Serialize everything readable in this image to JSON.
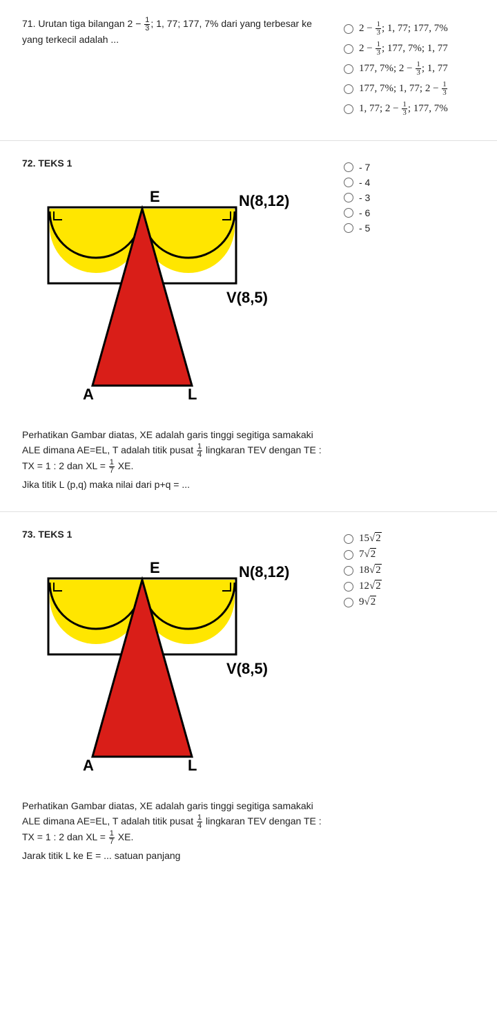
{
  "q71": {
    "prompt_prefix": "71. Urutan tiga bilangan 2 − ",
    "frac1_num": "1",
    "frac1_den": "3",
    "prompt_mid": "; 1, 77; 177, 7% dari yang terbesar ke yang terkecil adalah ...",
    "options": [
      {
        "pre": "2 − ",
        "num": "1",
        "den": "3",
        "post": "; 1, 77; 177, 7%"
      },
      {
        "pre": "2 − ",
        "num": "1",
        "den": "3",
        "post": "; 177, 7%; 1, 77"
      },
      {
        "pre": "177, 7%; 2 − ",
        "num": "1",
        "den": "3",
        "post": "; 1, 77"
      },
      {
        "pre": "177, 7%; 1, 77; 2 − ",
        "num": "1",
        "den": "3",
        "post": ""
      },
      {
        "pre": "1, 77; 2 − ",
        "num": "1",
        "den": "3",
        "post": "; 177, 7%"
      }
    ]
  },
  "q72": {
    "title": "72. TEKS 1",
    "desc_line1": "Perhatikan Gambar diatas, XE adalah garis tinggi segitiga samakaki ALE dimana AE=EL, T adalah titik pusat ",
    "desc_frac1_num": "1",
    "desc_frac1_den": "4",
    "desc_line2": " lingkaran TEV dengan TE : TX = 1 : 2 dan XL = ",
    "desc_frac2_num": "1",
    "desc_frac2_den": "7",
    "desc_line3": " XE.",
    "desc_line4": "Jika titik L (p,q) maka nilai dari p+q = ...",
    "options": [
      "- 7",
      "- 4",
      "- 3",
      "- 6",
      "- 5"
    ]
  },
  "q73": {
    "title": "73. TEKS 1",
    "desc_line1": "Perhatikan Gambar diatas, XE adalah garis tinggi segitiga samakaki ALE dimana AE=EL, T adalah titik pusat ",
    "desc_frac1_num": "1",
    "desc_frac1_den": "4",
    "desc_line2": " lingkaran TEV dengan TE : TX = 1 : 2 dan XL = ",
    "desc_frac2_num": "1",
    "desc_frac2_den": "7",
    "desc_line3": " XE.",
    "desc_line4": "Jarak titik L ke E = ... satuan panjang",
    "options": [
      {
        "coef": "15",
        "rad": "2"
      },
      {
        "coef": "7",
        "rad": "2"
      },
      {
        "coef": "18",
        "rad": "2"
      },
      {
        "coef": "12",
        "rad": "2"
      },
      {
        "coef": "9",
        "rad": "2"
      }
    ]
  },
  "figure": {
    "E": "E",
    "N": "N(8,12)",
    "V": "V(8,5)",
    "A": "A",
    "L": "L",
    "colors": {
      "outline": "#000000",
      "triangle": "#d91e18",
      "arcfill": "#ffe600",
      "bg": "#ffffff"
    }
  }
}
